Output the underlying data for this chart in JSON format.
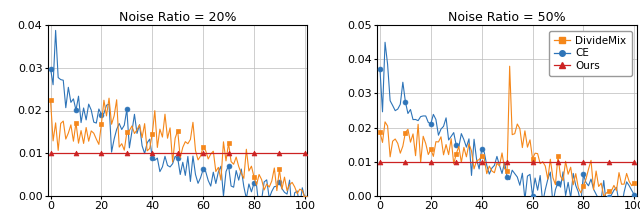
{
  "title1": "Noise Ratio = 20%",
  "title2": "Noise Ratio = 50%",
  "ylim1": [
    0.0,
    0.04
  ],
  "ylim2": [
    0.0,
    0.05
  ],
  "yticks1": [
    0.0,
    0.01,
    0.02,
    0.03,
    0.04
  ],
  "yticks2": [
    0.0,
    0.01,
    0.02,
    0.03,
    0.04,
    0.05
  ],
  "xticks": [
    0,
    20,
    40,
    60,
    80,
    100
  ],
  "color_dividemix": "#F5871A",
  "color_ce": "#2E74B8",
  "color_ours": "#CC2222",
  "marker_dividemix": "s",
  "marker_ce": "o",
  "marker_ours": "^",
  "x": [
    0,
    1,
    2,
    3,
    4,
    5,
    6,
    7,
    8,
    9,
    10,
    11,
    12,
    13,
    14,
    15,
    16,
    17,
    18,
    19,
    20,
    21,
    22,
    23,
    24,
    25,
    26,
    27,
    28,
    29,
    30,
    31,
    32,
    33,
    34,
    35,
    36,
    37,
    38,
    39,
    40,
    41,
    42,
    43,
    44,
    45,
    46,
    47,
    48,
    49,
    50,
    51,
    52,
    53,
    54,
    55,
    56,
    57,
    58,
    59,
    60,
    61,
    62,
    63,
    64,
    65,
    66,
    67,
    68,
    69,
    70,
    71,
    72,
    73,
    74,
    75,
    76,
    77,
    78,
    79,
    80,
    81,
    82,
    83,
    84,
    85,
    86,
    87,
    88,
    89,
    90,
    91,
    92,
    93,
    94,
    95,
    96,
    97,
    98,
    99,
    100
  ],
  "ce_20": [
    0.029,
    0.024,
    0.038,
    0.031,
    0.025,
    0.026,
    0.022,
    0.024,
    0.021,
    0.022,
    0.02,
    0.022,
    0.019,
    0.021,
    0.019,
    0.02,
    0.02,
    0.018,
    0.019,
    0.021,
    0.019,
    0.02,
    0.018,
    0.019,
    0.017,
    0.018,
    0.016,
    0.018,
    0.015,
    0.016,
    0.015,
    0.014,
    0.016,
    0.014,
    0.013,
    0.015,
    0.013,
    0.014,
    0.012,
    0.013,
    0.012,
    0.01,
    0.009,
    0.008,
    0.007,
    0.009,
    0.007,
    0.008,
    0.006,
    0.007,
    0.008,
    0.007,
    0.006,
    0.006,
    0.007,
    0.006,
    0.007,
    0.005,
    0.006,
    0.005,
    0.006,
    0.005,
    0.006,
    0.005,
    0.005,
    0.004,
    0.005,
    0.005,
    0.004,
    0.005,
    0.004,
    0.003,
    0.004,
    0.004,
    0.003,
    0.004,
    0.003,
    0.003,
    0.003,
    0.002,
    0.001,
    0.002,
    0.001,
    0.002,
    0.001,
    0.002,
    0.001,
    0.001,
    0.001,
    0.001,
    0.001,
    0.001,
    0.001,
    0.001,
    0.001,
    0.001,
    0.001,
    0.001,
    0.001,
    0.001,
    0.001
  ],
  "dm_20": [
    0.022,
    0.014,
    0.018,
    0.016,
    0.013,
    0.015,
    0.014,
    0.013,
    0.016,
    0.014,
    0.015,
    0.013,
    0.016,
    0.014,
    0.015,
    0.013,
    0.014,
    0.016,
    0.013,
    0.014,
    0.015,
    0.022,
    0.018,
    0.022,
    0.019,
    0.017,
    0.018,
    0.015,
    0.016,
    0.014,
    0.013,
    0.015,
    0.014,
    0.013,
    0.015,
    0.016,
    0.014,
    0.015,
    0.013,
    0.012,
    0.014,
    0.016,
    0.013,
    0.018,
    0.015,
    0.017,
    0.014,
    0.013,
    0.012,
    0.011,
    0.013,
    0.012,
    0.011,
    0.01,
    0.012,
    0.011,
    0.012,
    0.01,
    0.009,
    0.011,
    0.01,
    0.011,
    0.009,
    0.01,
    0.009,
    0.008,
    0.01,
    0.009,
    0.01,
    0.008,
    0.009,
    0.008,
    0.009,
    0.008,
    0.007,
    0.008,
    0.006,
    0.007,
    0.005,
    0.006,
    0.005,
    0.004,
    0.003,
    0.004,
    0.003,
    0.003,
    0.004,
    0.003,
    0.004,
    0.003,
    0.003,
    0.003,
    0.004,
    0.003,
    0.003,
    0.003,
    0.003,
    0.002,
    0.003,
    0.003,
    0.003
  ],
  "ours_20": [
    0.01,
    0.01,
    0.01,
    0.01,
    0.01,
    0.01,
    0.01,
    0.01,
    0.01,
    0.01,
    0.01,
    0.01,
    0.01,
    0.01,
    0.01,
    0.01,
    0.01,
    0.01,
    0.01,
    0.01,
    0.01,
    0.01,
    0.01,
    0.01,
    0.01,
    0.01,
    0.01,
    0.01,
    0.01,
    0.01,
    0.01,
    0.01,
    0.01,
    0.01,
    0.01,
    0.01,
    0.01,
    0.01,
    0.01,
    0.01,
    0.01,
    0.01,
    0.01,
    0.01,
    0.01,
    0.01,
    0.01,
    0.01,
    0.01,
    0.01,
    0.01,
    0.01,
    0.01,
    0.01,
    0.01,
    0.01,
    0.01,
    0.01,
    0.01,
    0.01,
    0.01,
    0.01,
    0.01,
    0.01,
    0.01,
    0.01,
    0.01,
    0.01,
    0.01,
    0.01,
    0.01,
    0.01,
    0.01,
    0.01,
    0.01,
    0.01,
    0.01,
    0.01,
    0.01,
    0.01,
    0.01,
    0.01,
    0.01,
    0.01,
    0.01,
    0.01,
    0.01,
    0.01,
    0.01,
    0.01,
    0.01,
    0.01,
    0.01,
    0.01,
    0.01,
    0.01,
    0.01,
    0.01,
    0.01,
    0.01,
    0.01
  ],
  "ce_50": [
    0.032,
    0.031,
    0.044,
    0.04,
    0.029,
    0.027,
    0.03,
    0.026,
    0.029,
    0.025,
    0.027,
    0.025,
    0.026,
    0.024,
    0.025,
    0.023,
    0.022,
    0.024,
    0.021,
    0.022,
    0.021,
    0.02,
    0.021,
    0.019,
    0.02,
    0.019,
    0.018,
    0.017,
    0.018,
    0.016,
    0.017,
    0.015,
    0.016,
    0.015,
    0.014,
    0.015,
    0.013,
    0.014,
    0.013,
    0.012,
    0.013,
    0.011,
    0.01,
    0.009,
    0.008,
    0.009,
    0.008,
    0.007,
    0.006,
    0.007,
    0.006,
    0.007,
    0.006,
    0.005,
    0.006,
    0.005,
    0.006,
    0.005,
    0.004,
    0.005,
    0.004,
    0.005,
    0.004,
    0.004,
    0.003,
    0.004,
    0.003,
    0.004,
    0.003,
    0.003,
    0.003,
    0.004,
    0.003,
    0.003,
    0.003,
    0.002,
    0.003,
    0.003,
    0.002,
    0.002,
    0.002,
    0.002,
    0.001,
    0.002,
    0.001,
    0.002,
    0.001,
    0.001,
    0.001,
    0.001,
    0.001,
    0.001,
    0.001,
    0.001,
    0.001,
    0.001,
    0.001,
    0.001,
    0.001,
    0.001,
    0.001
  ],
  "dm_50": [
    0.02,
    0.016,
    0.018,
    0.019,
    0.015,
    0.016,
    0.018,
    0.015,
    0.016,
    0.014,
    0.018,
    0.016,
    0.015,
    0.017,
    0.015,
    0.016,
    0.014,
    0.015,
    0.016,
    0.014,
    0.015,
    0.013,
    0.015,
    0.016,
    0.014,
    0.016,
    0.015,
    0.014,
    0.015,
    0.014,
    0.013,
    0.014,
    0.013,
    0.012,
    0.011,
    0.013,
    0.011,
    0.01,
    0.012,
    0.011,
    0.01,
    0.009,
    0.008,
    0.01,
    0.009,
    0.008,
    0.01,
    0.009,
    0.008,
    0.009,
    0.008,
    0.037,
    0.02,
    0.019,
    0.021,
    0.018,
    0.017,
    0.016,
    0.015,
    0.016,
    0.009,
    0.011,
    0.01,
    0.009,
    0.01,
    0.008,
    0.007,
    0.008,
    0.007,
    0.006,
    0.007,
    0.006,
    0.007,
    0.006,
    0.007,
    0.006,
    0.005,
    0.007,
    0.006,
    0.005,
    0.005,
    0.005,
    0.006,
    0.005,
    0.004,
    0.005,
    0.004,
    0.004,
    0.003,
    0.004,
    0.003,
    0.004,
    0.003,
    0.003,
    0.004,
    0.003,
    0.003,
    0.004,
    0.003,
    0.003,
    0.004
  ],
  "ours_50": [
    0.01,
    0.01,
    0.01,
    0.01,
    0.01,
    0.01,
    0.01,
    0.01,
    0.01,
    0.01,
    0.01,
    0.01,
    0.01,
    0.01,
    0.01,
    0.01,
    0.01,
    0.01,
    0.01,
    0.01,
    0.01,
    0.01,
    0.01,
    0.01,
    0.01,
    0.01,
    0.01,
    0.01,
    0.01,
    0.01,
    0.01,
    0.01,
    0.01,
    0.01,
    0.01,
    0.01,
    0.01,
    0.01,
    0.01,
    0.01,
    0.01,
    0.01,
    0.01,
    0.01,
    0.01,
    0.01,
    0.01,
    0.01,
    0.01,
    0.01,
    0.01,
    0.01,
    0.01,
    0.01,
    0.01,
    0.01,
    0.01,
    0.01,
    0.01,
    0.01,
    0.01,
    0.01,
    0.01,
    0.01,
    0.01,
    0.01,
    0.01,
    0.01,
    0.01,
    0.01,
    0.01,
    0.01,
    0.01,
    0.01,
    0.01,
    0.01,
    0.01,
    0.01,
    0.01,
    0.01,
    0.01,
    0.01,
    0.01,
    0.01,
    0.01,
    0.01,
    0.01,
    0.01,
    0.01,
    0.01,
    0.01,
    0.01,
    0.01,
    0.01,
    0.01,
    0.01,
    0.01,
    0.01,
    0.01,
    0.01,
    0.01
  ]
}
